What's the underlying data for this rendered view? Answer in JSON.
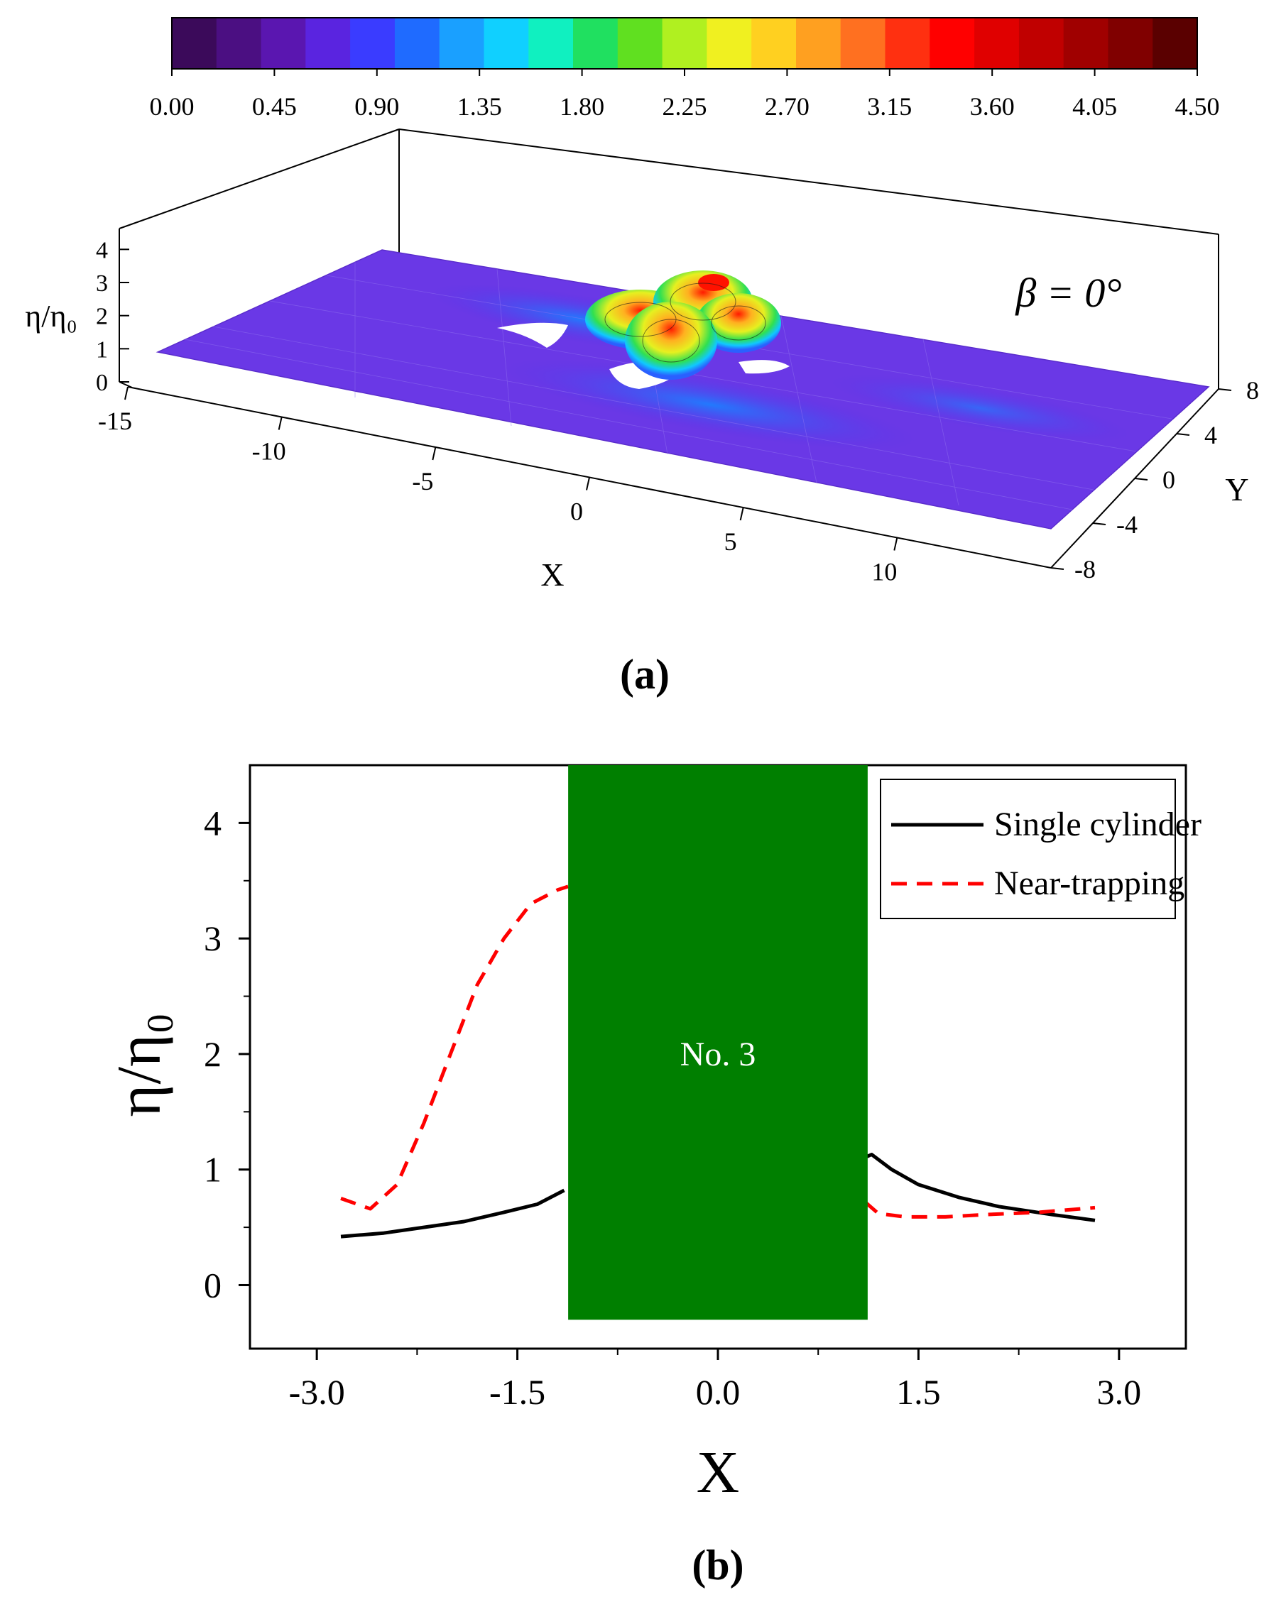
{
  "figure": {
    "panel_a_label": "(a)",
    "panel_b_label": "(b)"
  },
  "chart_data": [
    {
      "type": "surface",
      "panel": "a",
      "title": "",
      "annotation": "β = 0°",
      "colorbar": {
        "ticks": [
          "0.00",
          "0.45",
          "0.90",
          "1.35",
          "1.80",
          "2.25",
          "2.70",
          "3.15",
          "3.60",
          "4.05",
          "4.50"
        ],
        "range": [
          0,
          4.5
        ],
        "colors": [
          "#3b0a5a",
          "#4b0f82",
          "#5a16b0",
          "#5a24e0",
          "#3a3cff",
          "#1f6bff",
          "#1aa0ff",
          "#10d0ff",
          "#10f0c0",
          "#20e060",
          "#60e020",
          "#b0f020",
          "#f0f020",
          "#ffd020",
          "#ffa020",
          "#ff7020",
          "#ff3010",
          "#ff0000",
          "#e00000",
          "#c00000",
          "#a00000",
          "#800000",
          "#5a0000"
        ]
      },
      "xlabel": "X",
      "ylabel": "Y",
      "zlabel": "η/η₀",
      "x_ticks": [
        "-15",
        "-10",
        "-5",
        "0",
        "5",
        "10"
      ],
      "y_ticks": [
        "8",
        "4",
        "0",
        "-4",
        "-8"
      ],
      "z_ticks": [
        "0",
        "1",
        "2",
        "3",
        "4"
      ],
      "xlim": [
        -15,
        15
      ],
      "ylim": [
        -8,
        8
      ],
      "zlim": [
        0,
        4.5
      ],
      "peaks": [
        {
          "x": 0.0,
          "y": 1.5,
          "z": 4.0
        },
        {
          "x": 1.8,
          "y": 1.0,
          "z": 3.4
        },
        {
          "x": -1.6,
          "y": 2.2,
          "z": 2.6
        },
        {
          "x": 0.4,
          "y": -1.6,
          "z": 2.2
        }
      ]
    },
    {
      "type": "line",
      "panel": "b",
      "xlabel": "X",
      "ylabel": "η/η₀",
      "xlim": [
        -3.5,
        3.5
      ],
      "ylim": [
        -0.55,
        4.5
      ],
      "x_ticks": [
        "-3.0",
        "-1.5",
        "0.0",
        "1.5",
        "3.0"
      ],
      "y_ticks": [
        "0",
        "1",
        "2",
        "3",
        "4"
      ],
      "x_tick_values": [
        -3.0,
        -1.5,
        0.0,
        1.5,
        3.0
      ],
      "y_tick_values": [
        0,
        1,
        2,
        3,
        4
      ],
      "legend_position": "top-right",
      "cylinder": {
        "label": "No. 3",
        "x_range": [
          -1.12,
          1.12
        ],
        "y_range": [
          -0.3,
          4.5
        ],
        "color": "#007f00"
      },
      "series": [
        {
          "name": "Single cylinder",
          "style": "solid",
          "color": "#000000",
          "x": [
            -2.82,
            -2.5,
            -2.2,
            -1.9,
            -1.6,
            -1.35,
            -1.15,
            1.05,
            1.15,
            1.3,
            1.5,
            1.8,
            2.1,
            2.5,
            2.82
          ],
          "y": [
            0.42,
            0.45,
            0.5,
            0.55,
            0.63,
            0.7,
            0.82,
            1.08,
            1.13,
            1.0,
            0.87,
            0.76,
            0.68,
            0.61,
            0.56
          ]
        },
        {
          "name": "Near-trapping",
          "style": "dashed",
          "color": "#ff0000",
          "x": [
            -2.82,
            -2.6,
            -2.4,
            -2.2,
            -2.0,
            -1.8,
            -1.6,
            -1.4,
            -1.2,
            -1.12,
            1.1,
            1.2,
            1.4,
            1.7,
            2.0,
            2.4,
            2.82
          ],
          "y": [
            0.75,
            0.66,
            0.87,
            1.4,
            2.0,
            2.6,
            3.0,
            3.3,
            3.42,
            3.45,
            0.72,
            0.62,
            0.59,
            0.59,
            0.61,
            0.63,
            0.67
          ]
        }
      ]
    }
  ]
}
